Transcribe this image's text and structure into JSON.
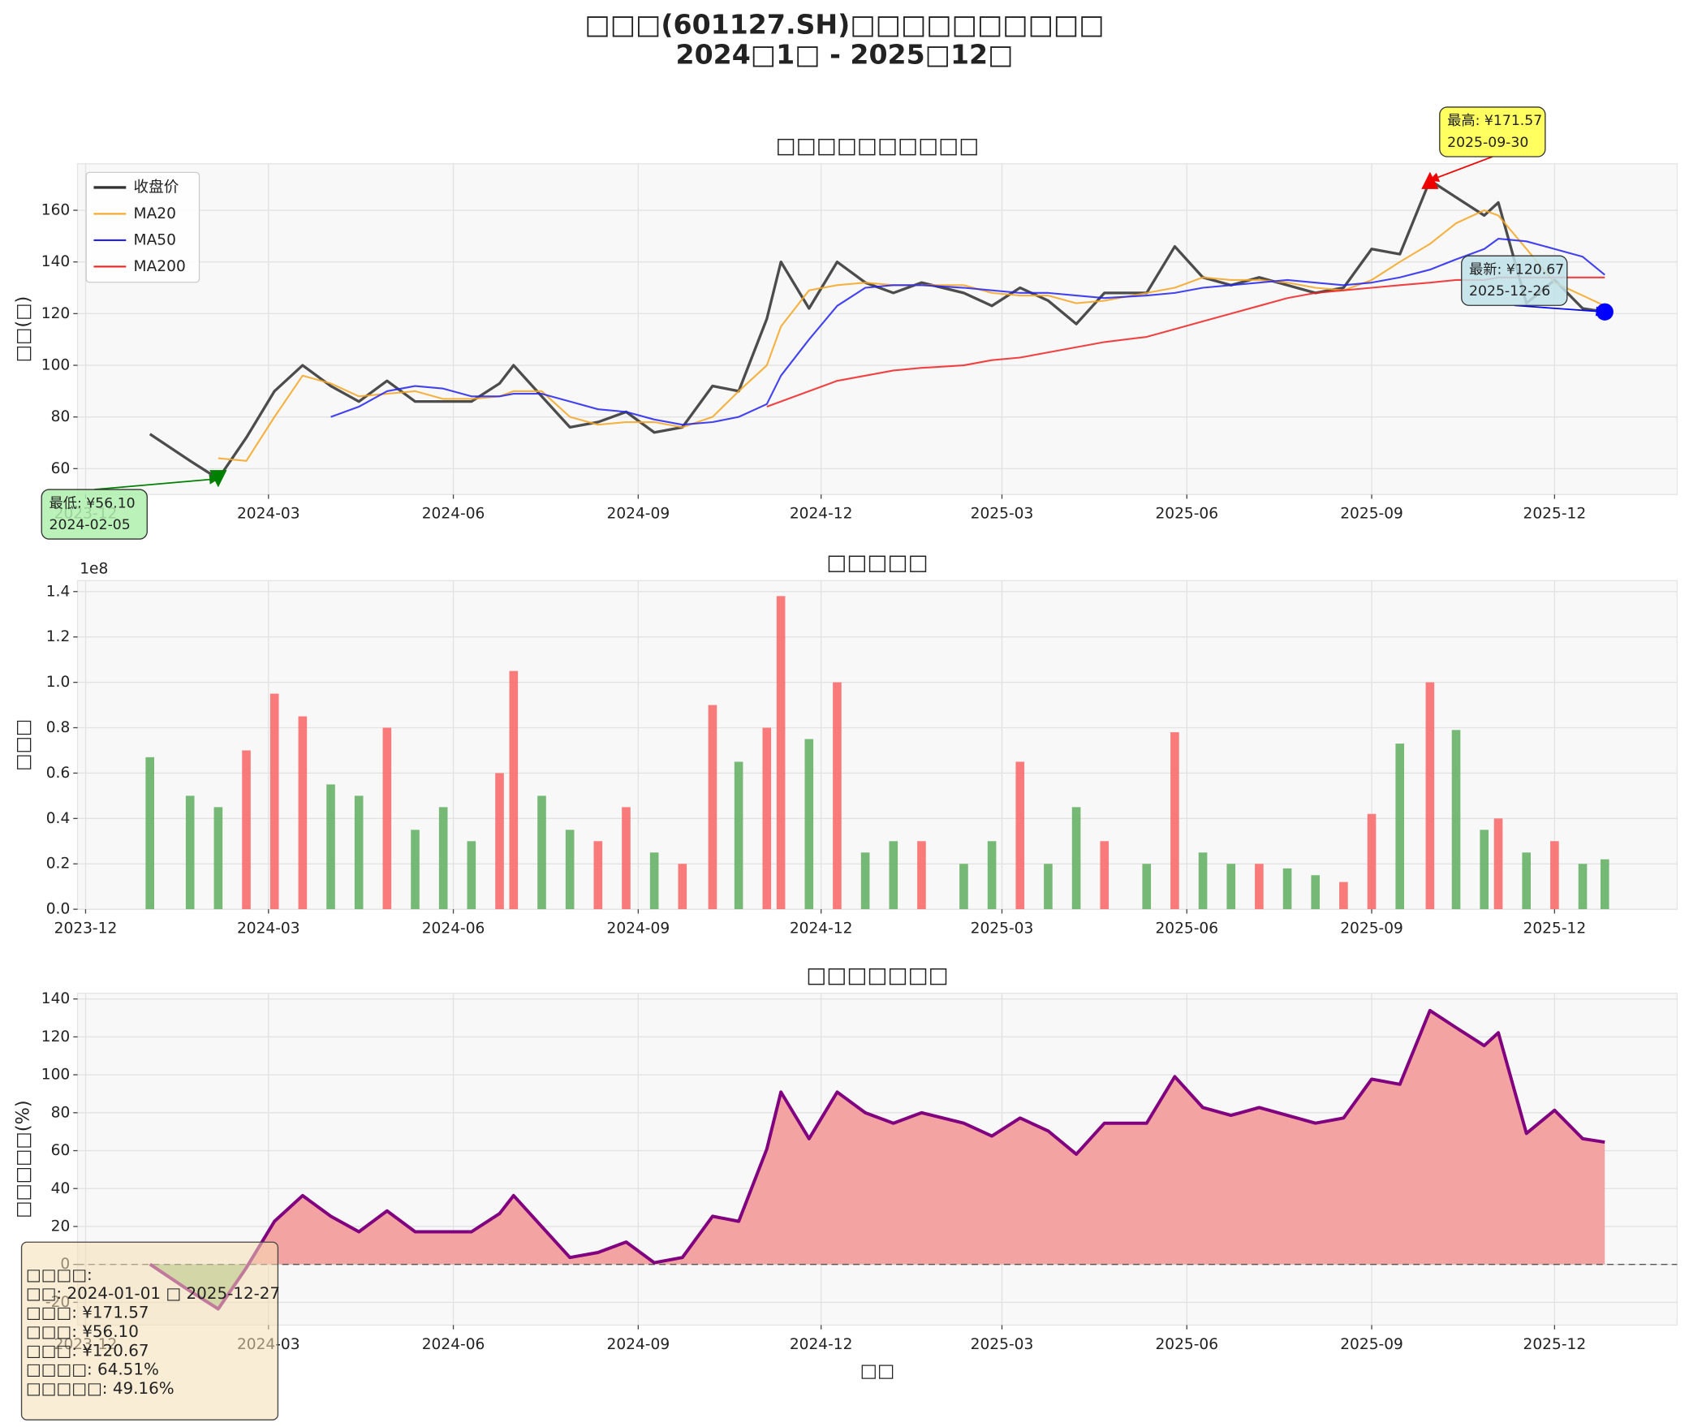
{
  "title": "□□□(601127.SH)□□□□□□□□□□",
  "subtitle": "2024□1□ - 2025□12□",
  "chart_data": [
    {
      "type": "line",
      "title": "□□□□□□□□□□",
      "ylabel": "□□(□)",
      "x": [
        "2024-01-02",
        "2024-01-22",
        "2024-02-05",
        "2024-02-19",
        "2024-03-04",
        "2024-03-18",
        "2024-04-01",
        "2024-04-15",
        "2024-04-29",
        "2024-05-13",
        "2024-05-27",
        "2024-06-10",
        "2024-06-24",
        "2024-07-01",
        "2024-07-15",
        "2024-07-29",
        "2024-08-12",
        "2024-08-26",
        "2024-09-09",
        "2024-09-23",
        "2024-10-08",
        "2024-10-21",
        "2024-11-04",
        "2024-11-11",
        "2024-11-25",
        "2024-12-09",
        "2024-12-23",
        "2025-01-06",
        "2025-01-20",
        "2025-02-10",
        "2025-02-24",
        "2025-03-10",
        "2025-03-24",
        "2025-04-07",
        "2025-04-21",
        "2025-05-12",
        "2025-05-26",
        "2025-06-09",
        "2025-06-23",
        "2025-07-07",
        "2025-07-21",
        "2025-08-04",
        "2025-08-18",
        "2025-09-01",
        "2025-09-15",
        "2025-09-30",
        "2025-10-13",
        "2025-10-27",
        "2025-11-03",
        "2025-11-17",
        "2025-12-01",
        "2025-12-15",
        "2025-12-26"
      ],
      "series": [
        {
          "name": "收盘价",
          "color": "#333333",
          "values": [
            73.4,
            63,
            56.1,
            72,
            90,
            100,
            92,
            86,
            94,
            86,
            86,
            86,
            93,
            100,
            88,
            76,
            78,
            82,
            74,
            76,
            92,
            90,
            118,
            140,
            122,
            140,
            132,
            128,
            132,
            128,
            123,
            130,
            125,
            116,
            128,
            128,
            146,
            134,
            131,
            134,
            131,
            128,
            130,
            145,
            143,
            171.57,
            165,
            158,
            163,
            124,
            133,
            122,
            120.67
          ]
        },
        {
          "name": "MA20",
          "color": "#f5a623",
          "values": [
            null,
            null,
            64,
            63,
            80,
            96,
            93,
            88,
            89,
            90,
            87,
            87,
            88,
            90,
            90,
            80,
            77,
            78,
            78,
            76,
            80,
            90,
            100,
            115,
            129,
            131,
            132,
            131,
            131,
            131,
            128,
            127,
            127,
            124,
            125,
            128,
            130,
            134,
            133,
            133,
            132,
            130,
            129,
            133,
            140,
            147,
            155,
            160,
            158,
            145,
            132,
            127,
            123
          ]
        },
        {
          "name": "MA50",
          "color": "#2222ee",
          "values": [
            null,
            null,
            null,
            null,
            null,
            null,
            80,
            84,
            90,
            92,
            91,
            88,
            88,
            89,
            89,
            86,
            83,
            82,
            79,
            77,
            78,
            80,
            85,
            96,
            110,
            123,
            130,
            131,
            131,
            130,
            129,
            128,
            128,
            127,
            126,
            127,
            128,
            130,
            131,
            132,
            133,
            132,
            131,
            132,
            134,
            137,
            141,
            145,
            149,
            148,
            145,
            142,
            135
          ]
        },
        {
          "name": "MA200",
          "color": "#ee2222",
          "values": [
            null,
            null,
            null,
            null,
            null,
            null,
            null,
            null,
            null,
            null,
            null,
            null,
            null,
            null,
            null,
            null,
            null,
            null,
            null,
            null,
            null,
            null,
            84,
            86,
            90,
            94,
            96,
            98,
            99,
            100,
            102,
            103,
            105,
            107,
            109,
            111,
            114,
            117,
            120,
            123,
            126,
            128,
            129,
            130,
            131,
            132,
            133,
            133,
            134,
            134,
            134,
            134,
            134
          ]
        }
      ],
      "xlim": [
        "2023-11-27",
        "2026-01-31"
      ],
      "xticks": [
        {
          "value": "2023-12-01",
          "label": "2023-12"
        },
        {
          "value": "2024-03-01",
          "label": "2024-03"
        },
        {
          "value": "2024-06-01",
          "label": "2024-06"
        },
        {
          "value": "2024-09-01",
          "label": "2024-09"
        },
        {
          "value": "2024-12-01",
          "label": "2024-12"
        },
        {
          "value": "2025-03-01",
          "label": "2025-03"
        },
        {
          "value": "2025-06-01",
          "label": "2025-06"
        },
        {
          "value": "2025-09-01",
          "label": "2025-09"
        },
        {
          "value": "2025-12-01",
          "label": "2025-12"
        }
      ],
      "ylim": [
        50,
        178
      ],
      "yticks": [
        60,
        80,
        100,
        120,
        140,
        160
      ],
      "grid": true,
      "legend": "upper left",
      "annotations": [
        {
          "label": [
            "最低: ¥56.10",
            "2024-02-05"
          ],
          "x": "2024-02-05",
          "y": 56.1,
          "marker": "v",
          "color": "#008000",
          "box_color": "#aef0ae"
        },
        {
          "label": [
            "最高: ¥171.57",
            "2025-09-30"
          ],
          "x": "2025-09-30",
          "y": 171.57,
          "marker": "^",
          "color": "#ee0000",
          "box_color": "#ffff44"
        },
        {
          "label": [
            "最新: ¥120.67",
            "2025-12-26"
          ],
          "x": "2025-12-26",
          "y": 120.67,
          "marker": "o",
          "color": "#0000ff",
          "box_color": "#bfe2ea"
        }
      ]
    },
    {
      "type": "bar",
      "title": "□□□□□",
      "ylabel": "□□□",
      "offset_label": "1e8",
      "x": [
        "2024-01-02",
        "2024-01-22",
        "2024-02-05",
        "2024-02-19",
        "2024-03-04",
        "2024-03-18",
        "2024-04-01",
        "2024-04-15",
        "2024-04-29",
        "2024-05-13",
        "2024-05-27",
        "2024-06-10",
        "2024-06-24",
        "2024-07-01",
        "2024-07-15",
        "2024-07-29",
        "2024-08-12",
        "2024-08-26",
        "2024-09-09",
        "2024-09-23",
        "2024-10-08",
        "2024-10-21",
        "2024-11-04",
        "2024-11-11",
        "2024-11-25",
        "2024-12-09",
        "2024-12-23",
        "2025-01-06",
        "2025-01-20",
        "2025-02-10",
        "2025-02-24",
        "2025-03-10",
        "2025-03-24",
        "2025-04-07",
        "2025-04-21",
        "2025-05-12",
        "2025-05-26",
        "2025-06-09",
        "2025-06-23",
        "2025-07-07",
        "2025-07-21",
        "2025-08-04",
        "2025-08-18",
        "2025-09-01",
        "2025-09-15",
        "2025-09-30",
        "2025-10-13",
        "2025-10-27",
        "2025-11-03",
        "2025-11-17",
        "2025-12-01",
        "2025-12-15",
        "2025-12-26"
      ],
      "series": [
        {
          "values": [
            0.67,
            0.5,
            0.45,
            0.7,
            0.95,
            0.85,
            0.55,
            0.5,
            0.8,
            0.35,
            0.45,
            0.3,
            0.6,
            1.05,
            0.5,
            0.35,
            0.3,
            0.45,
            0.25,
            0.2,
            0.9,
            0.65,
            0.8,
            1.38,
            0.75,
            1.0,
            0.25,
            0.3,
            0.3,
            0.2,
            0.3,
            0.65,
            0.2,
            0.45,
            0.3,
            0.2,
            0.78,
            0.25,
            0.2,
            0.2,
            0.18,
            0.15,
            0.12,
            0.42,
            0.73,
            1.0,
            0.79,
            0.35,
            0.4,
            0.25,
            0.3,
            0.2,
            0.22
          ],
          "colors": [
            "#5fae5f",
            "#5fae5f",
            "#5fae5f",
            "#f86464",
            "#f86464",
            "#f86464",
            "#5fae5f",
            "#5fae5f",
            "#f86464",
            "#5fae5f",
            "#5fae5f",
            "#5fae5f",
            "#f86464",
            "#f86464",
            "#5fae5f",
            "#5fae5f",
            "#f86464",
            "#f86464",
            "#5fae5f",
            "#f86464",
            "#f86464",
            "#5fae5f",
            "#f86464",
            "#f86464",
            "#5fae5f",
            "#f86464",
            "#5fae5f",
            "#5fae5f",
            "#f86464",
            "#5fae5f",
            "#5fae5f",
            "#f86464",
            "#5fae5f",
            "#5fae5f",
            "#f86464",
            "#5fae5f",
            "#f86464",
            "#5fae5f",
            "#5fae5f",
            "#f86464",
            "#5fae5f",
            "#5fae5f",
            "#f86464",
            "#f86464",
            "#5fae5f",
            "#f86464",
            "#5fae5f",
            "#5fae5f",
            "#f86464",
            "#5fae5f",
            "#f86464",
            "#5fae5f",
            "#5fae5f"
          ]
        }
      ],
      "xlim": [
        "2023-11-27",
        "2026-01-31"
      ],
      "xticks": [
        {
          "value": "2023-12-01",
          "label": "2023-12"
        },
        {
          "value": "2024-03-01",
          "label": "2024-03"
        },
        {
          "value": "2024-06-01",
          "label": "2024-06"
        },
        {
          "value": "2024-09-01",
          "label": "2024-09"
        },
        {
          "value": "2024-12-01",
          "label": "2024-12"
        },
        {
          "value": "2025-03-01",
          "label": "2025-03"
        },
        {
          "value": "2025-06-01",
          "label": "2025-06"
        },
        {
          "value": "2025-09-01",
          "label": "2025-09"
        },
        {
          "value": "2025-12-01",
          "label": "2025-12"
        }
      ],
      "ylim": [
        0,
        1.448
      ],
      "yticks": [
        {
          "value": 0,
          "label": "0.0"
        },
        {
          "value": 0.2,
          "label": "0.2"
        },
        {
          "value": 0.4,
          "label": "0.4"
        },
        {
          "value": 0.6,
          "label": "0.6"
        },
        {
          "value": 0.8,
          "label": "0.8"
        },
        {
          "value": 1,
          "label": "1.0"
        },
        {
          "value": 1.2,
          "label": "1.2"
        },
        {
          "value": 1.4,
          "label": "1.4"
        }
      ],
      "grid": true
    },
    {
      "type": "area",
      "title": "□□□□□□□",
      "ylabel": "□□□□□(%)",
      "xlabel": "□□",
      "x": [
        "2024-01-02",
        "2024-01-22",
        "2024-02-05",
        "2024-02-19",
        "2024-03-04",
        "2024-03-18",
        "2024-04-01",
        "2024-04-15",
        "2024-04-29",
        "2024-05-13",
        "2024-05-27",
        "2024-06-10",
        "2024-06-24",
        "2024-07-01",
        "2024-07-15",
        "2024-07-29",
        "2024-08-12",
        "2024-08-26",
        "2024-09-09",
        "2024-09-23",
        "2024-10-08",
        "2024-10-21",
        "2024-11-04",
        "2024-11-11",
        "2024-11-25",
        "2024-12-09",
        "2024-12-23",
        "2025-01-06",
        "2025-01-20",
        "2025-02-10",
        "2025-02-24",
        "2025-03-10",
        "2025-03-24",
        "2025-04-07",
        "2025-04-21",
        "2025-05-12",
        "2025-05-26",
        "2025-06-09",
        "2025-06-23",
        "2025-07-07",
        "2025-07-21",
        "2025-08-04",
        "2025-08-18",
        "2025-09-01",
        "2025-09-15",
        "2025-09-30",
        "2025-10-13",
        "2025-10-27",
        "2025-11-03",
        "2025-11-17",
        "2025-12-01",
        "2025-12-15",
        "2025-12-26"
      ],
      "series": [
        {
          "color": "#800080",
          "fill_positive": "#f4a3a3",
          "fill_negative": "#a8cc98",
          "values": [
            0.1,
            -14.1,
            -23.5,
            -1.8,
            22.7,
            36.3,
            25.4,
            17.2,
            28.2,
            17.2,
            17.2,
            17.2,
            26.8,
            36.3,
            20.0,
            3.6,
            6.3,
            11.8,
            0.9,
            3.6,
            25.4,
            22.7,
            60.9,
            90.9,
            66.3,
            90.9,
            80.0,
            74.5,
            80.0,
            74.5,
            67.7,
            77.2,
            70.4,
            58.1,
            74.5,
            74.5,
            99.0,
            82.7,
            78.6,
            82.7,
            78.6,
            74.5,
            77.2,
            97.7,
            95.0,
            133.9,
            124.9,
            115.4,
            122.2,
            69.1,
            81.3,
            66.3,
            64.5
          ]
        }
      ],
      "hline": 0,
      "xlim": [
        "2023-11-27",
        "2026-01-31"
      ],
      "xticks": [
        {
          "value": "2023-12-01",
          "label": "2023-12"
        },
        {
          "value": "2024-03-01",
          "label": "2024-03"
        },
        {
          "value": "2024-06-01",
          "label": "2024-06"
        },
        {
          "value": "2024-09-01",
          "label": "2024-09"
        },
        {
          "value": "2024-12-01",
          "label": "2024-12"
        },
        {
          "value": "2025-03-01",
          "label": "2025-03"
        },
        {
          "value": "2025-06-01",
          "label": "2025-06"
        },
        {
          "value": "2025-09-01",
          "label": "2025-09"
        },
        {
          "value": "2025-12-01",
          "label": "2025-12"
        }
      ],
      "ylim": [
        -32,
        143
      ],
      "yticks": [
        -20,
        0,
        20,
        40,
        60,
        80,
        100,
        120,
        140
      ],
      "grid": true
    }
  ],
  "stats_box": {
    "lines": [
      "□□□□:",
      "□□: 2024-01-01 □ 2025-12-27",
      "□□□: ¥171.57",
      "□□□: ¥56.10",
      "□□□: ¥120.67",
      "□□□□: 64.51%",
      "□□□□□: 49.16%"
    ]
  }
}
